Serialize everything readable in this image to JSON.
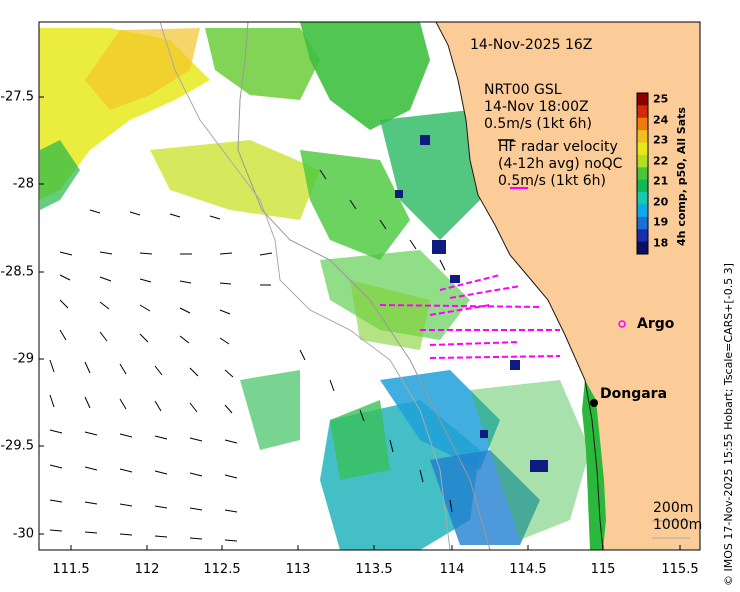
{
  "header": {
    "date_label": "14-Nov-2025 16Z"
  },
  "legend": {
    "gsl_title": "NRT00 GSL",
    "gsl_time": "14-Nov 18:00Z",
    "gsl_scale": "0.5m/s (1kt 6h)",
    "radar_title": "HF radar velocity",
    "radar_avg": "(4-12h avg) noQC",
    "radar_scale": "0.5m/s (1kt 6h)"
  },
  "places": {
    "argo": "Argo",
    "dongara": "Dongara"
  },
  "depth_legend": {
    "contour_200": "200m",
    "contour_1000": "1000m"
  },
  "colorbar": {
    "ticks": [
      "25",
      "24",
      "23",
      "22",
      "21",
      "20",
      "19",
      "18"
    ],
    "title": "4h comp, p50, All Sats",
    "colors": [
      "#8b0000",
      "#d42a0a",
      "#f07a10",
      "#f0c020",
      "#e8e818",
      "#b0e020",
      "#48c838",
      "#10b858",
      "#18c8b0",
      "#10a8e8",
      "#1870d8",
      "#1830b0",
      "#0a1060"
    ]
  },
  "credit": {
    "text": "© IMOS 17-Nov-2025 15:55 Hobart; Tscale=CARS+[-0.5 3]"
  },
  "axes": {
    "x_ticks": [
      "111.5",
      "112",
      "112.5",
      "113",
      "113.5",
      "114",
      "114.5",
      "115",
      "115.5"
    ],
    "y_ticks": [
      "-27.5",
      "-28",
      "-28.5",
      "-29",
      "-29.5",
      "-30"
    ]
  },
  "colors": {
    "land": "#fccc98",
    "coast_green": "#2cb83c",
    "magenta": "#ff00ff",
    "arrow": "#000000"
  }
}
